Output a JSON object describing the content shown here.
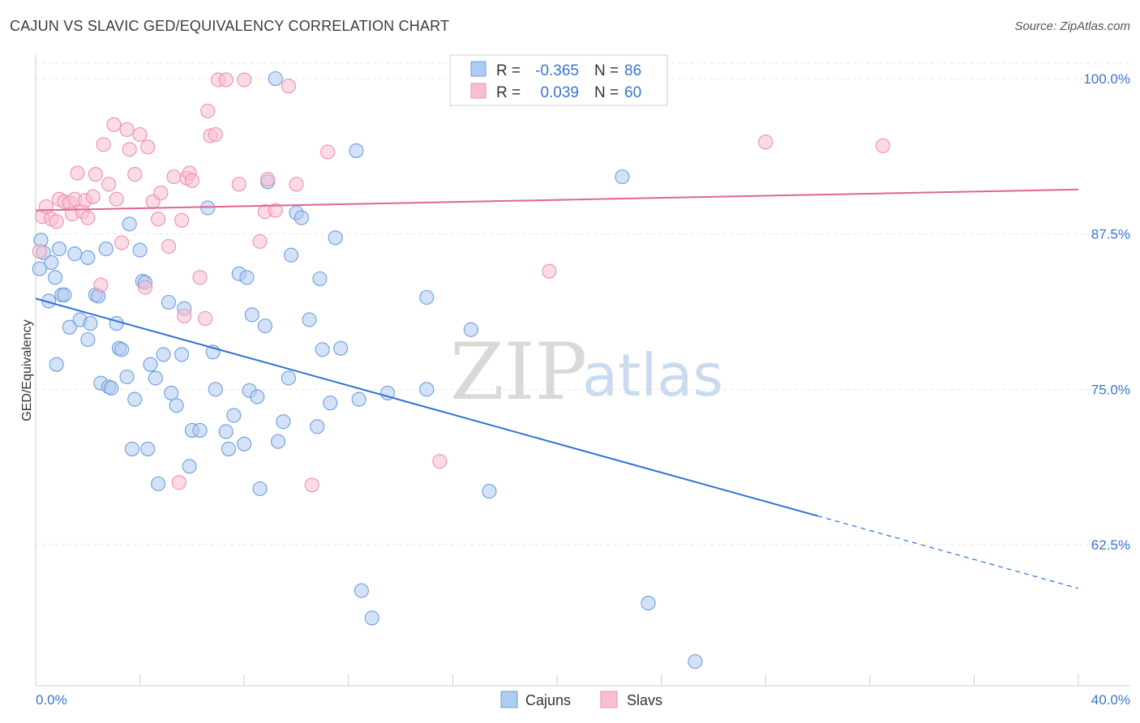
{
  "title": "CAJUN VS SLAVIC GED/EQUIVALENCY CORRELATION CHART",
  "source": "Source: ZipAtlas.com",
  "colors": {
    "cajuns_fill": "#aecbf0",
    "cajuns_stroke": "#6d9de0",
    "cajuns_line": "#2f72d4",
    "slavs_fill": "#f7bfd0",
    "slavs_stroke": "#ee8fae",
    "slavs_line": "#e0658f",
    "axis_text": "#3a74d0",
    "grid": "#e5e5e5"
  },
  "stats": {
    "r_label": "R =",
    "n_label": "N =",
    "cajuns": {
      "r": "-0.365",
      "n": "86"
    },
    "slavs": {
      "r": "0.039",
      "n": "60"
    }
  },
  "watermark": {
    "zip": "ZIP",
    "atlas": "atlas"
  },
  "chart_data": {
    "type": "scatter",
    "xlabel": "",
    "ylabel": "GED/Equivalency",
    "xlim": [
      0,
      40
    ],
    "ylim": [
      50,
      101.5
    ],
    "x_ticks": [
      "0.0%",
      "40.0%"
    ],
    "y_ticks": [
      {
        "value": 100.0,
        "label": "100.0%"
      },
      {
        "value": 87.5,
        "label": "87.5%"
      },
      {
        "value": 75.0,
        "label": "75.0%"
      },
      {
        "value": 62.5,
        "label": "62.5%"
      }
    ],
    "grid": "horizontal dashed",
    "legend": "bottom-center",
    "series": [
      {
        "name": "Cajuns",
        "trend": {
          "y_at_0": 82.3,
          "slope": -0.583,
          "solid_until_x": 30.0,
          "dashed_until_x": 40.0
        },
        "points": [
          [
            0.15,
            84.7
          ],
          [
            0.2,
            87.0
          ],
          [
            0.3,
            86.0
          ],
          [
            0.5,
            82.1
          ],
          [
            0.6,
            85.2
          ],
          [
            0.75,
            84.0
          ],
          [
            0.8,
            77.0
          ],
          [
            0.9,
            86.3
          ],
          [
            1.0,
            82.6
          ],
          [
            1.1,
            82.6
          ],
          [
            1.3,
            80.0
          ],
          [
            1.5,
            85.9
          ],
          [
            1.7,
            80.6
          ],
          [
            2.0,
            85.6
          ],
          [
            2.0,
            79.0
          ],
          [
            2.1,
            80.3
          ],
          [
            2.3,
            82.6
          ],
          [
            2.4,
            82.5
          ],
          [
            2.5,
            75.5
          ],
          [
            2.7,
            86.3
          ],
          [
            2.8,
            75.2
          ],
          [
            2.9,
            75.1
          ],
          [
            3.1,
            80.3
          ],
          [
            3.2,
            78.3
          ],
          [
            3.3,
            78.2
          ],
          [
            3.5,
            76.0
          ],
          [
            3.6,
            88.3
          ],
          [
            3.7,
            70.2
          ],
          [
            3.8,
            74.2
          ],
          [
            4.0,
            86.2
          ],
          [
            4.1,
            83.7
          ],
          [
            4.2,
            83.6
          ],
          [
            4.3,
            70.2
          ],
          [
            4.4,
            77.0
          ],
          [
            4.6,
            75.9
          ],
          [
            4.7,
            67.4
          ],
          [
            4.9,
            77.8
          ],
          [
            5.1,
            82.0
          ],
          [
            5.2,
            74.7
          ],
          [
            5.4,
            73.7
          ],
          [
            5.6,
            77.8
          ],
          [
            5.7,
            81.5
          ],
          [
            5.9,
            68.8
          ],
          [
            6.0,
            71.7
          ],
          [
            6.3,
            71.7
          ],
          [
            6.6,
            89.6
          ],
          [
            6.8,
            78.0
          ],
          [
            6.9,
            75.0
          ],
          [
            7.3,
            71.6
          ],
          [
            7.4,
            70.2
          ],
          [
            7.6,
            72.9
          ],
          [
            7.8,
            84.3
          ],
          [
            8.0,
            70.6
          ],
          [
            8.1,
            84.0
          ],
          [
            8.2,
            74.9
          ],
          [
            8.3,
            81.0
          ],
          [
            8.5,
            74.4
          ],
          [
            8.6,
            67.0
          ],
          [
            8.8,
            80.1
          ],
          [
            8.9,
            91.7
          ],
          [
            9.2,
            100.0
          ],
          [
            9.3,
            70.8
          ],
          [
            9.5,
            72.4
          ],
          [
            9.7,
            75.9
          ],
          [
            9.8,
            85.8
          ],
          [
            10.0,
            89.2
          ],
          [
            10.2,
            88.8
          ],
          [
            10.5,
            80.6
          ],
          [
            10.8,
            72.0
          ],
          [
            10.9,
            83.9
          ],
          [
            11.0,
            78.2
          ],
          [
            11.3,
            73.9
          ],
          [
            11.5,
            87.2
          ],
          [
            11.7,
            78.3
          ],
          [
            12.3,
            94.2
          ],
          [
            12.4,
            74.2
          ],
          [
            12.5,
            58.8
          ],
          [
            12.9,
            56.6
          ],
          [
            13.5,
            74.7
          ],
          [
            15.0,
            75.0
          ],
          [
            15.0,
            82.4
          ],
          [
            16.7,
            79.8
          ],
          [
            17.4,
            66.8
          ],
          [
            22.5,
            92.1
          ],
          [
            23.5,
            57.8
          ],
          [
            25.3,
            53.1
          ]
        ]
      },
      {
        "name": "Slavs",
        "trend": {
          "y_at_0": 89.4,
          "slope": 0.042,
          "solid_until_x": 40.0
        },
        "points": [
          [
            0.15,
            86.1
          ],
          [
            0.25,
            88.9
          ],
          [
            0.4,
            89.7
          ],
          [
            0.6,
            88.7
          ],
          [
            0.8,
            88.5
          ],
          [
            0.9,
            90.3
          ],
          [
            1.1,
            90.1
          ],
          [
            1.3,
            90.0
          ],
          [
            1.4,
            89.1
          ],
          [
            1.5,
            90.3
          ],
          [
            1.6,
            92.4
          ],
          [
            1.8,
            89.3
          ],
          [
            1.9,
            90.2
          ],
          [
            2.0,
            88.8
          ],
          [
            2.2,
            90.5
          ],
          [
            2.3,
            92.3
          ],
          [
            2.5,
            83.4
          ],
          [
            2.6,
            94.7
          ],
          [
            2.8,
            91.5
          ],
          [
            3.0,
            96.3
          ],
          [
            3.1,
            90.3
          ],
          [
            3.3,
            86.8
          ],
          [
            3.5,
            95.9
          ],
          [
            3.6,
            94.3
          ],
          [
            3.8,
            92.3
          ],
          [
            4.0,
            95.5
          ],
          [
            4.2,
            83.2
          ],
          [
            4.3,
            94.5
          ],
          [
            4.5,
            90.1
          ],
          [
            4.7,
            88.7
          ],
          [
            4.8,
            90.8
          ],
          [
            5.1,
            86.5
          ],
          [
            5.3,
            92.1
          ],
          [
            5.5,
            67.5
          ],
          [
            5.6,
            88.6
          ],
          [
            5.7,
            80.9
          ],
          [
            5.8,
            92.0
          ],
          [
            5.9,
            92.4
          ],
          [
            6.0,
            91.8
          ],
          [
            6.3,
            84.0
          ],
          [
            6.5,
            80.7
          ],
          [
            6.6,
            97.4
          ],
          [
            6.7,
            95.4
          ],
          [
            6.9,
            95.5
          ],
          [
            7.0,
            99.9
          ],
          [
            7.3,
            99.9
          ],
          [
            7.8,
            91.5
          ],
          [
            8.0,
            99.9
          ],
          [
            8.6,
            86.9
          ],
          [
            8.8,
            89.3
          ],
          [
            8.9,
            91.9
          ],
          [
            9.2,
            89.4
          ],
          [
            9.7,
            99.4
          ],
          [
            10.0,
            91.5
          ],
          [
            10.6,
            67.3
          ],
          [
            11.2,
            94.1
          ],
          [
            15.5,
            69.2
          ],
          [
            19.7,
            84.5
          ],
          [
            28.0,
            94.9
          ],
          [
            32.5,
            94.6
          ]
        ]
      }
    ]
  },
  "legend": {
    "cajuns": "Cajuns",
    "slavs": "Slavs"
  }
}
